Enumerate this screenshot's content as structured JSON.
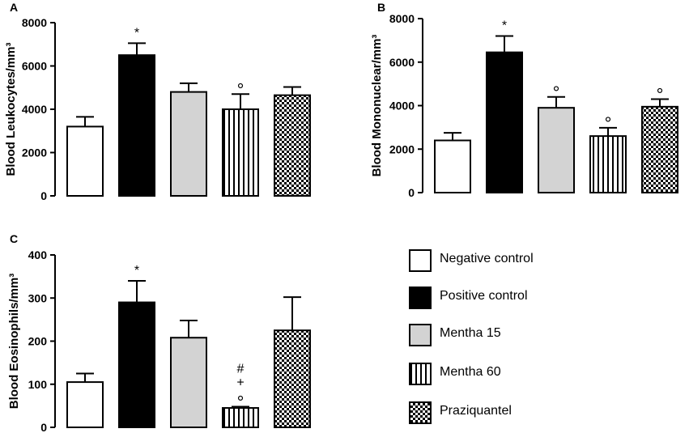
{
  "chart_data": [
    {
      "type": "bar",
      "panel": "A",
      "ylabel": "Blood Leukocytes/mm³",
      "ylim": [
        0,
        8000
      ],
      "yticks": [
        "0",
        "2000",
        "4000",
        "6000",
        "8000"
      ],
      "categories": [
        "Negative control",
        "Positive control",
        "Mentha 15",
        "Mentha 60",
        "Praziquantel"
      ],
      "values": [
        3200,
        6500,
        4800,
        4000,
        4650
      ],
      "errors": [
        450,
        550,
        400,
        700,
        380
      ],
      "annotations": [
        "",
        "*",
        "",
        "°",
        ""
      ]
    },
    {
      "type": "bar",
      "panel": "B",
      "ylabel": "Blood Mononuclear/mm³",
      "ylim": [
        0,
        8000
      ],
      "yticks": [
        "0",
        "2000",
        "4000",
        "6000",
        "8000"
      ],
      "categories": [
        "Negative control",
        "Positive control",
        "Mentha 15",
        "Mentha 60",
        "Praziquantel"
      ],
      "values": [
        2400,
        6450,
        3900,
        2600,
        3950
      ],
      "errors": [
        350,
        750,
        500,
        380,
        350
      ],
      "annotations": [
        "",
        "*",
        "°",
        "°",
        "°"
      ]
    },
    {
      "type": "bar",
      "panel": "C",
      "ylabel": "Blood Eosinophils/mm³",
      "ylim": [
        0,
        400
      ],
      "yticks": [
        "0",
        "100",
        "200",
        "300",
        "400"
      ],
      "categories": [
        "Negative control",
        "Positive control",
        "Mentha 15",
        "Mentha 60",
        "Praziquantel"
      ],
      "values": [
        105,
        290,
        208,
        45,
        225
      ],
      "errors": [
        20,
        50,
        40,
        3,
        77
      ],
      "annotations": [
        "",
        "*",
        "",
        "#\n+\n°",
        ""
      ]
    }
  ],
  "legend": {
    "items": [
      {
        "label": "Negative control",
        "pattern": "white"
      },
      {
        "label": "Positive control",
        "pattern": "black"
      },
      {
        "label": "Mentha 15",
        "pattern": "gray"
      },
      {
        "label": "Mentha 60",
        "pattern": "vstripes"
      },
      {
        "label": "Praziquantel",
        "pattern": "checker"
      }
    ]
  },
  "colors": {
    "gray": "#d3d3d3",
    "black": "#000000",
    "white": "#ffffff"
  }
}
